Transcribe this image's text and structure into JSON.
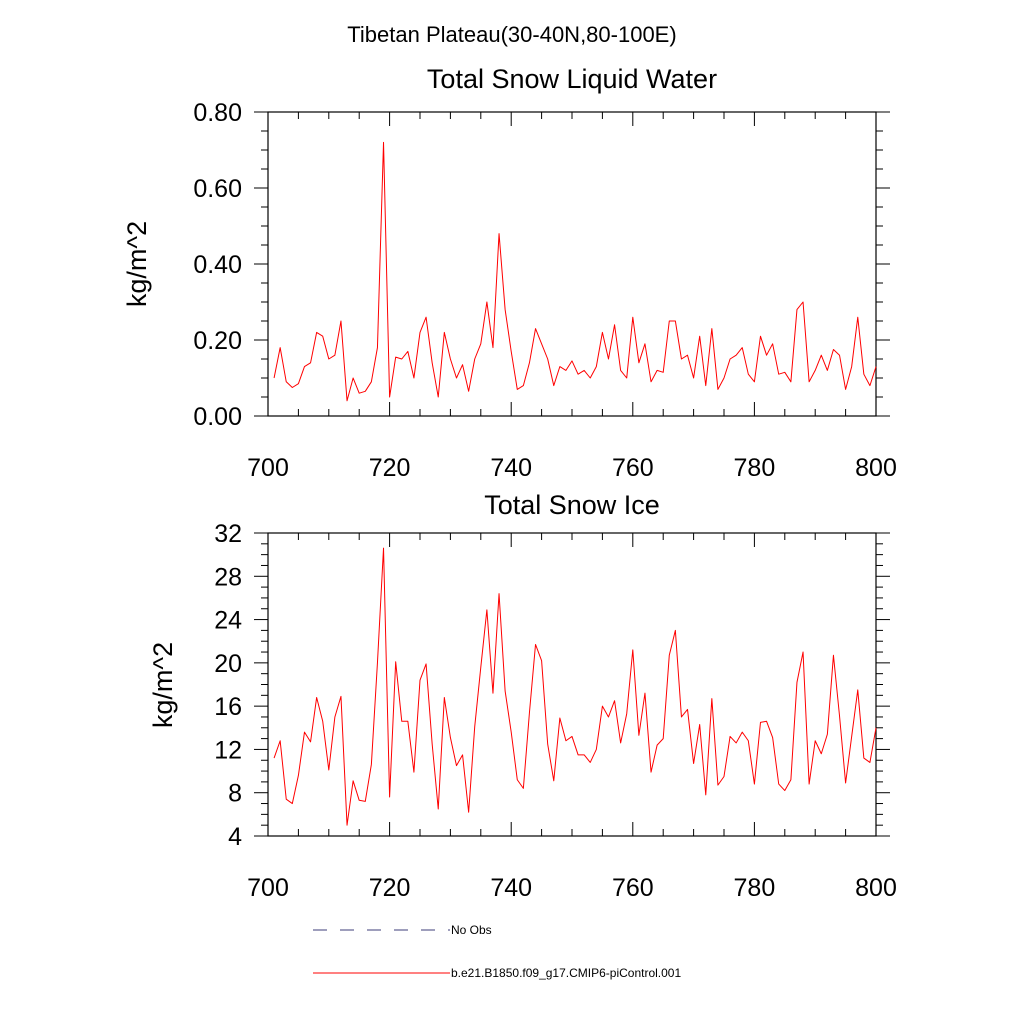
{
  "figure": {
    "suptitle": "Tibetan Plateau(30-40N,80-100E)"
  },
  "legend": {
    "entries": [
      {
        "label": "No Obs",
        "color": "#3c3c78",
        "dash": "dashed"
      },
      {
        "label": "b.e21.B1850.f09_g17.CMIP6-piControl.001",
        "color": "#ff0000",
        "dash": "solid"
      }
    ],
    "placement": "bottom"
  },
  "chart_data": [
    {
      "type": "line",
      "title": "Total Snow Liquid Water",
      "xlabel": "",
      "ylabel": "kg/m^2",
      "xlim": [
        700,
        800
      ],
      "ylim": [
        0,
        0.8
      ],
      "xticks": [
        700,
        720,
        740,
        760,
        780,
        800
      ],
      "xtick_labels": [
        "700",
        "720",
        "740",
        "760",
        "780",
        "800"
      ],
      "yticks": [
        0,
        0.2,
        0.4,
        0.6,
        0.8
      ],
      "ytick_labels": [
        "0.00",
        "0.20",
        "0.40",
        "0.60",
        "0.80"
      ],
      "grid": false,
      "x_start": 701,
      "series": [
        {
          "color": "#ff0000",
          "values": [
            0.1,
            0.18,
            0.09,
            0.075,
            0.085,
            0.13,
            0.14,
            0.22,
            0.21,
            0.15,
            0.16,
            0.25,
            0.04,
            0.1,
            0.06,
            0.065,
            0.09,
            0.18,
            0.72,
            0.05,
            0.155,
            0.15,
            0.17,
            0.1,
            0.22,
            0.26,
            0.14,
            0.05,
            0.22,
            0.15,
            0.1,
            0.135,
            0.065,
            0.15,
            0.19,
            0.3,
            0.18,
            0.48,
            0.28,
            0.17,
            0.07,
            0.08,
            0.14,
            0.23,
            0.19,
            0.15,
            0.08,
            0.13,
            0.12,
            0.145,
            0.11,
            0.12,
            0.1,
            0.13,
            0.22,
            0.15,
            0.24,
            0.12,
            0.1,
            0.26,
            0.14,
            0.19,
            0.09,
            0.12,
            0.115,
            0.25,
            0.25,
            0.15,
            0.16,
            0.1,
            0.21,
            0.08,
            0.23,
            0.07,
            0.1,
            0.15,
            0.16,
            0.18,
            0.11,
            0.09,
            0.21,
            0.16,
            0.19,
            0.11,
            0.115,
            0.09,
            0.28,
            0.3,
            0.09,
            0.12,
            0.16,
            0.12,
            0.175,
            0.16,
            0.07,
            0.13,
            0.26,
            0.11,
            0.08,
            0.13
          ]
        }
      ]
    },
    {
      "type": "line",
      "title": "Total Snow Ice",
      "xlabel": "",
      "ylabel": "kg/m^2",
      "xlim": [
        700,
        800
      ],
      "ylim": [
        4,
        32
      ],
      "xticks": [
        700,
        720,
        740,
        760,
        780,
        800
      ],
      "xtick_labels": [
        "700",
        "720",
        "740",
        "760",
        "780",
        "800"
      ],
      "yticks": [
        4,
        8,
        12,
        16,
        20,
        24,
        28,
        32
      ],
      "ytick_labels": [
        "4",
        "8",
        "12",
        "16",
        "20",
        "24",
        "28",
        "32"
      ],
      "grid": false,
      "x_start": 701,
      "series": [
        {
          "color": "#ff0000",
          "values": [
            11.2,
            12.8,
            7.4,
            7.0,
            9.6,
            13.6,
            12.7,
            16.8,
            14.6,
            10.1,
            15.0,
            16.9,
            5.0,
            9.1,
            7.3,
            7.2,
            10.6,
            20.0,
            30.6,
            7.6,
            20.1,
            14.6,
            14.6,
            9.9,
            18.4,
            19.9,
            12.5,
            6.5,
            16.8,
            13.1,
            10.5,
            11.5,
            6.2,
            14.1,
            19.6,
            24.9,
            17.2,
            26.4,
            17.4,
            13.6,
            9.2,
            8.4,
            15.4,
            21.7,
            20.2,
            12.5,
            9.1,
            14.9,
            12.8,
            13.2,
            11.5,
            11.5,
            10.8,
            12.0,
            16.0,
            15.0,
            16.5,
            12.6,
            15.3,
            21.2,
            13.3,
            17.2,
            9.9,
            12.4,
            13.0,
            20.7,
            23.0,
            15.0,
            15.7,
            10.7,
            14.3,
            7.8,
            16.7,
            8.7,
            9.5,
            13.2,
            12.6,
            13.6,
            12.8,
            8.8,
            14.5,
            14.6,
            13.1,
            8.8,
            8.2,
            9.2,
            18.2,
            21.0,
            8.8,
            12.8,
            11.6,
            13.4,
            20.7,
            15.1,
            8.9,
            13.2,
            17.5,
            11.2,
            10.8,
            14.0
          ]
        }
      ]
    }
  ]
}
